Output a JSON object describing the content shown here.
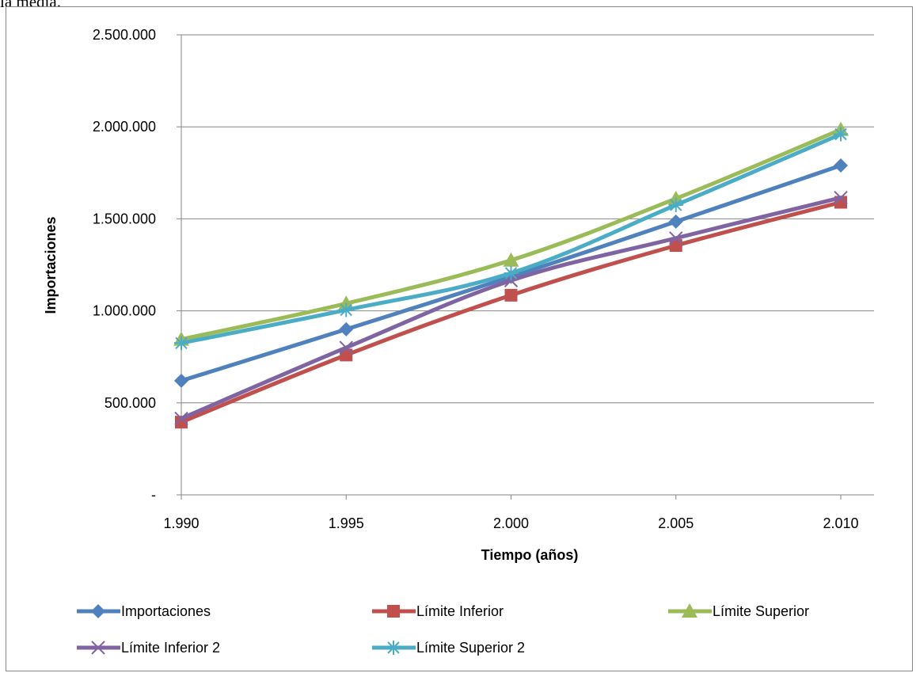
{
  "caption_fragment": "la media.",
  "chart_data": {
    "type": "line",
    "title": "",
    "xlabel": "Tiempo  (años)",
    "ylabel": "Importaciones",
    "categories": [
      "1.990",
      "1.995",
      "2.000",
      "2.005",
      "2.010"
    ],
    "ylim": [
      0,
      2500000
    ],
    "yticks": [
      0,
      500000,
      1000000,
      1500000,
      2000000,
      2500000
    ],
    "ytick_labels": [
      "-",
      "500.000",
      "1.000.000",
      "1.500.000",
      "2.000.000",
      "2.500.000"
    ],
    "grid": "horizontal",
    "legend_position": "bottom",
    "series": [
      {
        "name": "Importaciones",
        "color": "#4f81bd",
        "marker": "diamond",
        "values": [
          620000,
          900000,
          1185000,
          1485000,
          1790000
        ]
      },
      {
        "name": "Límite Inferior",
        "color": "#c0504d",
        "marker": "square",
        "values": [
          395000,
          760000,
          1085000,
          1355000,
          1590000
        ]
      },
      {
        "name": "Límite Superior",
        "color": "#9bbb59",
        "marker": "triangle",
        "values": [
          845000,
          1040000,
          1275000,
          1610000,
          1985000
        ]
      },
      {
        "name": "Límite Inferior 2",
        "color": "#8064a2",
        "marker": "x",
        "values": [
          415000,
          800000,
          1165000,
          1395000,
          1615000
        ]
      },
      {
        "name": "Límite Superior 2",
        "color": "#4bacc6",
        "marker": "star",
        "values": [
          825000,
          1005000,
          1205000,
          1575000,
          1960000
        ]
      }
    ]
  }
}
